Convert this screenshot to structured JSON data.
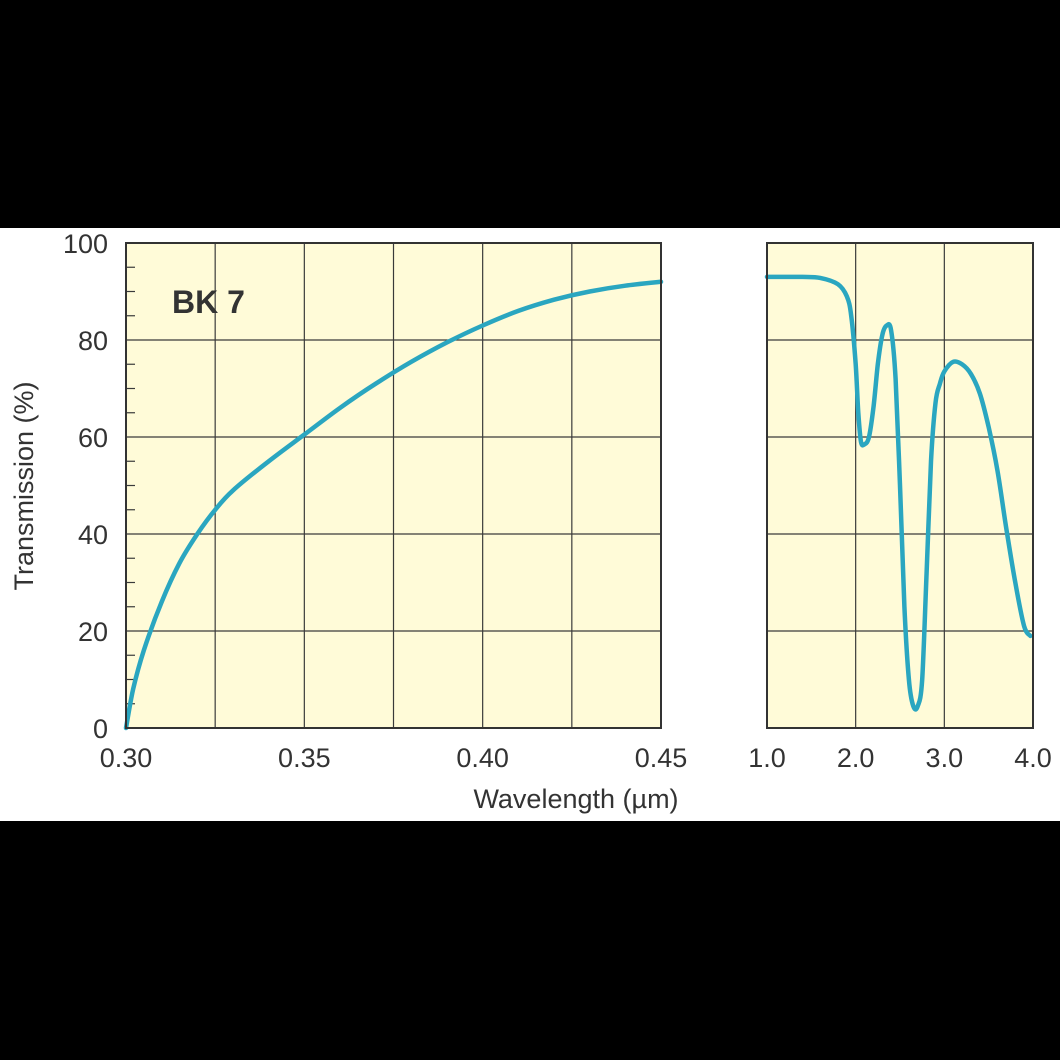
{
  "chart_data": {
    "type": "line",
    "ylabel": "Transmission (%)",
    "xlabel": "Wavelength (µm)",
    "ylim": [
      0,
      100
    ],
    "yticks": [
      "0",
      "20",
      "40",
      "60",
      "80",
      "100"
    ],
    "grid": true,
    "colors": {
      "plot_bg": "#fffbd8",
      "line": "#2aa6c0",
      "grid": "#3a3a3a"
    },
    "panels": [
      {
        "id": "uv-visible",
        "annotation": "BK 7",
        "xlim": [
          0.3,
          0.45
        ],
        "xticks": [
          "0.30",
          "0.35",
          "0.40",
          "0.45"
        ],
        "series": [
          {
            "x": [
              0.3,
              0.302,
              0.305,
              0.31,
              0.315,
              0.32,
              0.325,
              0.33,
              0.34,
              0.35,
              0.36,
              0.37,
              0.38,
              0.39,
              0.4,
              0.41,
              0.42,
              0.43,
              0.44,
              0.45
            ],
            "y": [
              0,
              8,
              16,
              26,
              34,
              40,
              45,
              49,
              55,
              60.5,
              66,
              71,
              75.5,
              79.5,
              83,
              86,
              88.3,
              90,
              91.2,
              92
            ]
          }
        ]
      },
      {
        "id": "infrared",
        "xlim": [
          1.0,
          4.0
        ],
        "xticks": [
          "1.0",
          "2.0",
          "3.0",
          "4.0"
        ],
        "series": [
          {
            "x": [
              1.0,
              1.2,
              1.4,
              1.6,
              1.8,
              1.9,
              1.95,
              2.0,
              2.03,
              2.06,
              2.1,
              2.15,
              2.2,
              2.25,
              2.3,
              2.35,
              2.4,
              2.45,
              2.5,
              2.55,
              2.6,
              2.65,
              2.7,
              2.75,
              2.8,
              2.85,
              2.9,
              2.95,
              3.0,
              3.1,
              3.2,
              3.3,
              3.4,
              3.5,
              3.6,
              3.7,
              3.8,
              3.9,
              3.97
            ],
            "y": [
              93,
              93,
              93,
              92.8,
              91.5,
              89,
              85,
              75,
              65,
              59,
              58.5,
              60,
              66,
              75,
              81,
              83,
              82,
              72,
              50,
              25,
              10,
              4.5,
              4.5,
              10,
              32,
              55,
              67,
              71,
              73.5,
              75.5,
              75,
              73,
              69,
              62,
              53,
              41,
              30,
              21,
              19
            ]
          }
        ]
      }
    ]
  }
}
